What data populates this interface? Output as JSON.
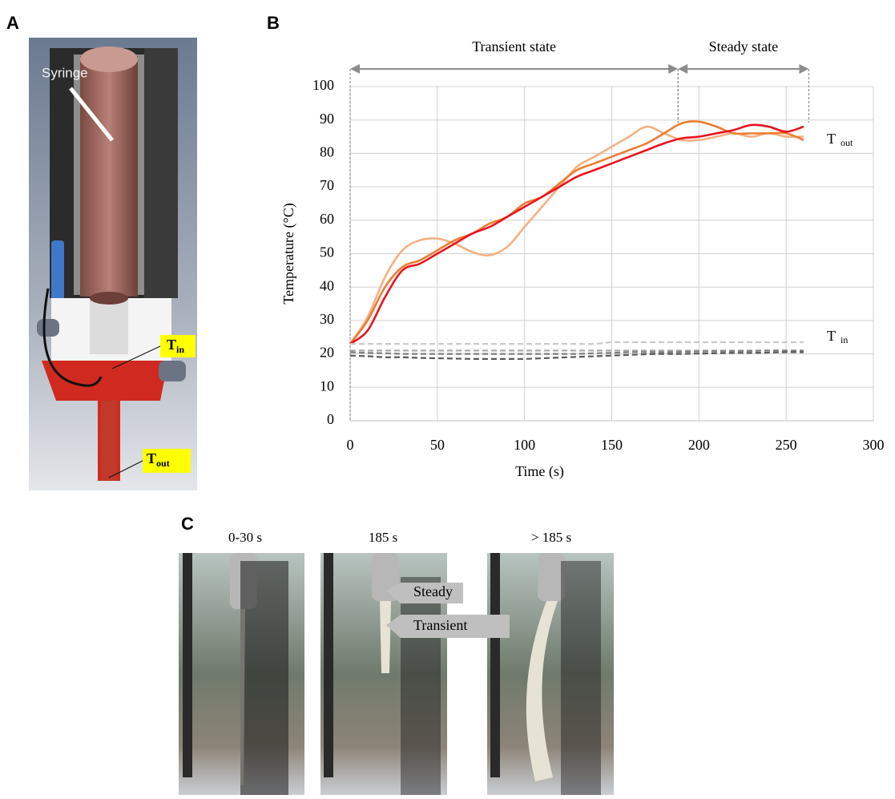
{
  "panel_labels": {
    "a": "A",
    "b": "B",
    "c": "C"
  },
  "panel_a": {
    "syringe": "Syringe",
    "t_in": {
      "main": "T",
      "sub": "in"
    },
    "t_out": {
      "main": "T",
      "sub": "out"
    }
  },
  "panel_c": {
    "captions": [
      "0-30 s",
      "185 s",
      "> 185 s"
    ],
    "callouts": [
      "Steady",
      "Transient"
    ]
  },
  "chart_data": {
    "type": "line",
    "x_label": "Time (s)",
    "y_label": "Temperature (°C)",
    "xlim": [
      0,
      300
    ],
    "ylim": [
      0,
      100
    ],
    "xticks": [
      0,
      50,
      100,
      150,
      200,
      250,
      300
    ],
    "yticks": [
      0,
      10,
      20,
      30,
      40,
      50,
      60,
      70,
      80,
      90,
      100
    ],
    "grid": true,
    "annotations": [
      {
        "text": "Transient state",
        "x": [
          0,
          188
        ]
      },
      {
        "text": "Steady state",
        "x": [
          188,
          263
        ]
      }
    ],
    "group_labels": [
      {
        "main": "T",
        "sub": "out",
        "at": 82
      },
      {
        "main": "T",
        "sub": "in",
        "at": 23
      }
    ],
    "x": [
      0,
      10,
      20,
      30,
      40,
      50,
      60,
      70,
      80,
      90,
      100,
      110,
      120,
      130,
      140,
      150,
      160,
      170,
      180,
      190,
      200,
      210,
      220,
      230,
      240,
      250,
      260
    ],
    "series": [
      {
        "color": "#f4b183",
        "dash": false,
        "values": [
          23,
          31,
          43,
          51,
          54,
          54.5,
          53,
          50.5,
          49.5,
          52,
          58,
          64,
          70,
          76,
          79,
          82,
          85,
          88,
          86,
          84,
          84,
          85,
          86,
          85,
          86,
          85,
          85
        ]
      },
      {
        "color": "#ed7d31",
        "dash": false,
        "values": [
          23,
          30,
          40,
          46,
          48,
          51,
          54,
          56,
          59,
          61,
          65,
          67,
          71,
          75,
          77,
          79,
          81,
          83,
          86,
          89,
          89.5,
          88,
          86,
          86,
          86,
          86,
          84
        ]
      },
      {
        "color": "#e8141e",
        "dash": false,
        "values": [
          23,
          27,
          37,
          45,
          47,
          50,
          53,
          56,
          58,
          61,
          64,
          67,
          70,
          73,
          75,
          77,
          79,
          81,
          83,
          84.5,
          85,
          86,
          87,
          88.5,
          88,
          86.5,
          88
        ]
      },
      {
        "color": "#c9c9c9",
        "dash": true,
        "values": [
          23,
          23,
          23,
          23,
          23,
          23,
          23,
          23,
          23,
          23,
          23,
          23,
          23,
          23,
          23,
          23.5,
          23.5,
          23.5,
          23.5,
          23.5,
          23.5,
          23.5,
          23.5,
          23.5,
          23.5,
          23.5,
          23.5
        ]
      },
      {
        "color": "#a6a6a6",
        "dash": true,
        "values": [
          21,
          21,
          21,
          21,
          21,
          21,
          21,
          21,
          21,
          21,
          21,
          21,
          21,
          21,
          21,
          21,
          21,
          21,
          21,
          21,
          21,
          21,
          21,
          21,
          21,
          21,
          21
        ]
      },
      {
        "color": "#7f7f7f",
        "dash": true,
        "values": [
          20.5,
          20.3,
          20.2,
          20,
          20,
          20,
          20,
          20,
          20,
          20,
          20,
          20,
          20,
          20,
          20.2,
          20.3,
          20.5,
          20.5,
          20.5,
          20.6,
          20.7,
          20.8,
          20.8,
          20.9,
          21,
          21,
          21
        ]
      },
      {
        "color": "#595959",
        "dash": true,
        "values": [
          19.5,
          19.3,
          19,
          19,
          18.8,
          18.7,
          18.6,
          18.5,
          18.5,
          18.5,
          18.5,
          18.7,
          18.9,
          19.1,
          19.3,
          19.5,
          19.7,
          19.9,
          20,
          20,
          20.1,
          20.2,
          20.3,
          20.3,
          20.4,
          20.5,
          20.5
        ]
      }
    ]
  }
}
